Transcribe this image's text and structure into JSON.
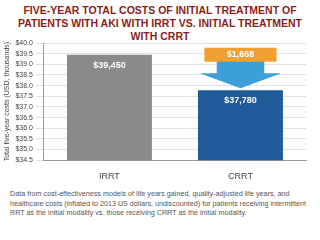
{
  "chart_data": {
    "type": "bar",
    "title": "FIVE-YEAR TOTAL COSTS OF INITIAL TREATMENT OF PATIENTS WITH AKI WITH IRRT VS. INITIAL TREATMENT WITH CRRT",
    "categories": [
      "IRRT",
      "CRRT"
    ],
    "values": [
      39.45,
      37.78
    ],
    "value_labels": [
      "$39,450",
      "$37,780"
    ],
    "data_labels": true,
    "colors": [
      "#8a8a8a",
      "#1f5a99"
    ],
    "ylabel": "Total five-year costs (USD, thousands)",
    "ylim": [
      34.5,
      40
    ],
    "yticks": [
      {
        "value": 34.5,
        "label": "$34.5"
      },
      {
        "value": 35,
        "label": "$35.0"
      },
      {
        "value": 35.5,
        "label": "$35.5"
      },
      {
        "value": 36,
        "label": "$36.0"
      },
      {
        "value": 36.5,
        "label": "$36.5"
      },
      {
        "value": 37,
        "label": "$37.0"
      },
      {
        "value": 37.5,
        "label": "$37.5"
      },
      {
        "value": 38,
        "label": "$38.0"
      },
      {
        "value": 38.5,
        "label": "$38.5"
      },
      {
        "value": 39,
        "label": "$39.0"
      },
      {
        "value": 39.5,
        "label": "$39.5"
      },
      {
        "value": 40,
        "label": "$40.0"
      }
    ],
    "grid": true,
    "annotations": [
      "$1,668"
    ],
    "caption": "Data from cost-effectiveness models of life years gained, quality-adjusted life years, and healthcare costs (inflated to 2013 US dollars, undiscounted) for patients receiving intermittent RRT as the initial modality vs. those receiving CRRT as the initial modality."
  }
}
